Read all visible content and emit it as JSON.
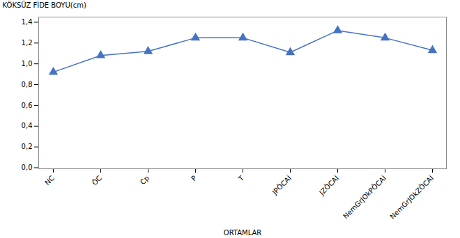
{
  "chart_data": {
    "type": "line",
    "categories": [
      "NC",
      "ÖC",
      "Cp",
      "P",
      "T",
      "JPÖCAİ",
      "JZÖCAİ",
      "NemGrJOkPÖCAİ",
      "NemGrJOkZÖCAİ"
    ],
    "values": [
      0.92,
      1.08,
      1.12,
      1.25,
      1.25,
      1.11,
      1.32,
      1.25,
      1.13
    ],
    "color": "#4472C4",
    "marker": "triangle",
    "xlabel": "ORTAMLAR",
    "ylabel": "KÖKSÜZ FİDE BOYU(cm)",
    "ylim": [
      -0.01,
      1.45
    ],
    "yticks": [
      {
        "value": 0.0,
        "label": "0,0"
      },
      {
        "value": 0.2,
        "label": "0,2"
      },
      {
        "value": 0.4,
        "label": "0,4"
      },
      {
        "value": 0.6,
        "label": "0,6"
      },
      {
        "value": 0.8,
        "label": "0,8"
      },
      {
        "value": 1.0,
        "label": "1,0"
      },
      {
        "value": 1.2,
        "label": "1,2"
      },
      {
        "value": 1.4,
        "label": "1,4"
      }
    ],
    "grid": false
  }
}
